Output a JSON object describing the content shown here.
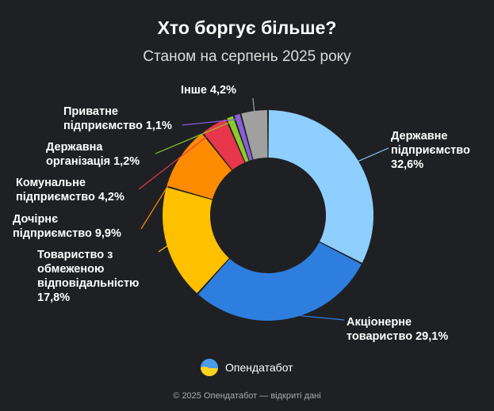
{
  "header": {
    "title": "Хто боргує більше?",
    "subtitle": "Станом на серпень 2025 року"
  },
  "chart_data": {
    "type": "pie",
    "donut": true,
    "unit": "%",
    "slices": [
      {
        "label": "Державне підприємство",
        "value": 32.6,
        "display": "32,6%",
        "color": "#8ecfff"
      },
      {
        "label": "Акціонерне товариство",
        "value": 29.1,
        "display": "29,1%",
        "color": "#2e7ee0"
      },
      {
        "label": "Товариство з обмеженою відповідальністю",
        "value": 17.8,
        "display": "17,8%",
        "color": "#ffc000"
      },
      {
        "label": "Дочірнє підприємство",
        "value": 9.9,
        "display": "9,9%",
        "color": "#ff8c00"
      },
      {
        "label": "Комунальне підприємство",
        "value": 4.2,
        "display": "4,2%",
        "color": "#e8364a"
      },
      {
        "label": "Державна організація",
        "value": 1.2,
        "display": "1,2%",
        "color": "#8ccc2a"
      },
      {
        "label": "Приватне підприємство",
        "value": 1.1,
        "display": "1,1%",
        "color": "#8a5ed8"
      },
      {
        "label": "Інше",
        "value": 4.2,
        "display": "4,2%",
        "color": "#a0a0a0"
      }
    ]
  },
  "brand": {
    "name": "Опендатабот",
    "icon": "opendatabot-logo-icon"
  },
  "footer": {
    "text": "© 2025 Опендатабот — відкриті дані"
  }
}
